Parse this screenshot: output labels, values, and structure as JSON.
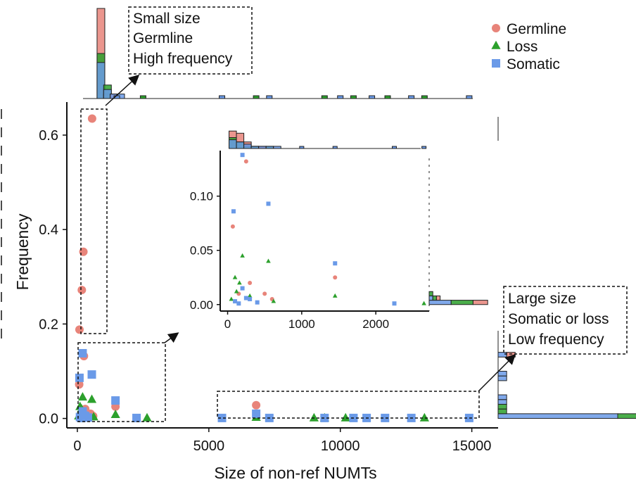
{
  "chart_data": {
    "type": "scatter",
    "xlabel": "Size of non-ref NUMTs",
    "ylabel": "Frequency",
    "xlim": [
      -400,
      16000
    ],
    "ylim": [
      -0.02,
      0.67
    ],
    "x_ticks": [
      "0",
      "5000",
      "10000",
      "15000"
    ],
    "y_ticks": [
      "0.0",
      "0.2",
      "0.4",
      "0.6"
    ],
    "colors": {
      "Germline": "#e8847a",
      "Loss": "#2ca02c",
      "Somatic": "#6a9ae8"
    },
    "legend": {
      "position": "top-right",
      "items": [
        {
          "name": "Germline",
          "color": "#e8847a",
          "marker": "circle"
        },
        {
          "name": "Loss",
          "color": "#2ca02c",
          "marker": "triangle"
        },
        {
          "name": "Somatic",
          "color": "#6a9ae8",
          "marker": "square"
        }
      ]
    },
    "series": [
      {
        "name": "Germline",
        "points": [
          [
            560,
            0.635
          ],
          [
            230,
            0.353
          ],
          [
            170,
            0.272
          ],
          [
            80,
            0.188
          ],
          [
            250,
            0.132
          ],
          [
            70,
            0.072
          ],
          [
            500,
            0.01
          ],
          [
            1450,
            0.025
          ],
          [
            6800,
            0.028
          ],
          [
            300,
            0.02
          ],
          [
            150,
            0.01
          ],
          [
            600,
            0.005
          ]
        ]
      },
      {
        "name": "Loss",
        "points": [
          [
            200,
            0.045
          ],
          [
            550,
            0.04
          ],
          [
            100,
            0.025
          ],
          [
            160,
            0.02
          ],
          [
            120,
            0.012
          ],
          [
            1450,
            0.008
          ],
          [
            620,
            0.003
          ],
          [
            2650,
            0.001
          ],
          [
            6800,
            0.002
          ],
          [
            9000,
            0.001
          ],
          [
            9400,
            0.001
          ],
          [
            10200,
            0.001
          ],
          [
            13200,
            0.001
          ],
          [
            50,
            0.005
          ],
          [
            300,
            0.008
          ]
        ]
      },
      {
        "name": "Somatic",
        "points": [
          [
            200,
            0.138
          ],
          [
            80,
            0.086
          ],
          [
            550,
            0.093
          ],
          [
            1450,
            0.038
          ],
          [
            200,
            0.015
          ],
          [
            300,
            0.005
          ],
          [
            100,
            0.003
          ],
          [
            2250,
            0.001
          ],
          [
            5500,
            0.001
          ],
          [
            6800,
            0.01
          ],
          [
            7300,
            0.001
          ],
          [
            9400,
            0.001
          ],
          [
            10500,
            0.001
          ],
          [
            11000,
            0.001
          ],
          [
            11700,
            0.001
          ],
          [
            12700,
            0.001
          ],
          [
            14900,
            0.001
          ],
          [
            400,
            0.002
          ],
          [
            250,
            0.006
          ],
          [
            150,
            0.001
          ]
        ]
      }
    ],
    "inset": {
      "xlim": [
        -100,
        2720
      ],
      "ylim": [
        -0.006,
        0.142
      ],
      "x_ticks": [
        "0",
        "1000",
        "2000"
      ],
      "y_ticks": [
        "0.00",
        "0.05",
        "0.10"
      ]
    },
    "annotations": [
      {
        "lines": [
          "Small size",
          "Germline",
          "High frequency"
        ]
      },
      {
        "lines": [
          "Large size",
          "Somatic or loss",
          "Low frequency"
        ]
      }
    ],
    "marginal_x": {
      "bins": [
        {
          "x0": 0,
          "x1": 250,
          "counts": [
            20,
            10,
            8
          ]
        },
        {
          "x0": 250,
          "x1": 500,
          "counts": [
            1,
            3,
            2
          ]
        },
        {
          "x0": 500,
          "x1": 750,
          "counts": [
            1,
            0,
            1
          ]
        },
        {
          "x0": 750,
          "x1": 1000,
          "counts": [
            0,
            0,
            1
          ]
        }
      ],
      "sparse_bins": [
        1500,
        2500,
        5500,
        6800,
        7300,
        9400,
        10000,
        10500,
        11200,
        11800,
        12700,
        13200,
        14900
      ]
    },
    "marginal_y": {
      "bins": [
        {
          "y0": 0.0,
          "y1": 0.01,
          "counts": [
            10,
            8,
            14
          ]
        },
        {
          "y0": 0.01,
          "y1": 0.02,
          "counts": [
            0,
            1,
            0
          ]
        },
        {
          "y0": 0.02,
          "y1": 0.03,
          "counts": [
            0,
            1,
            0
          ]
        },
        {
          "y0": 0.03,
          "y1": 0.04,
          "counts": [
            0,
            0,
            1
          ]
        },
        {
          "y0": 0.04,
          "y1": 0.05,
          "counts": [
            0,
            0,
            1
          ]
        },
        {
          "y0": 0.07,
          "y1": 0.08,
          "counts": [
            0,
            0,
            0
          ]
        },
        {
          "y0": 0.08,
          "y1": 0.09,
          "counts": [
            0,
            0,
            1
          ]
        },
        {
          "y0": 0.09,
          "y1": 0.1,
          "counts": [
            0,
            0,
            1
          ]
        },
        {
          "y0": 0.13,
          "y1": 0.14,
          "counts": [
            1,
            0,
            1
          ]
        }
      ]
    }
  }
}
